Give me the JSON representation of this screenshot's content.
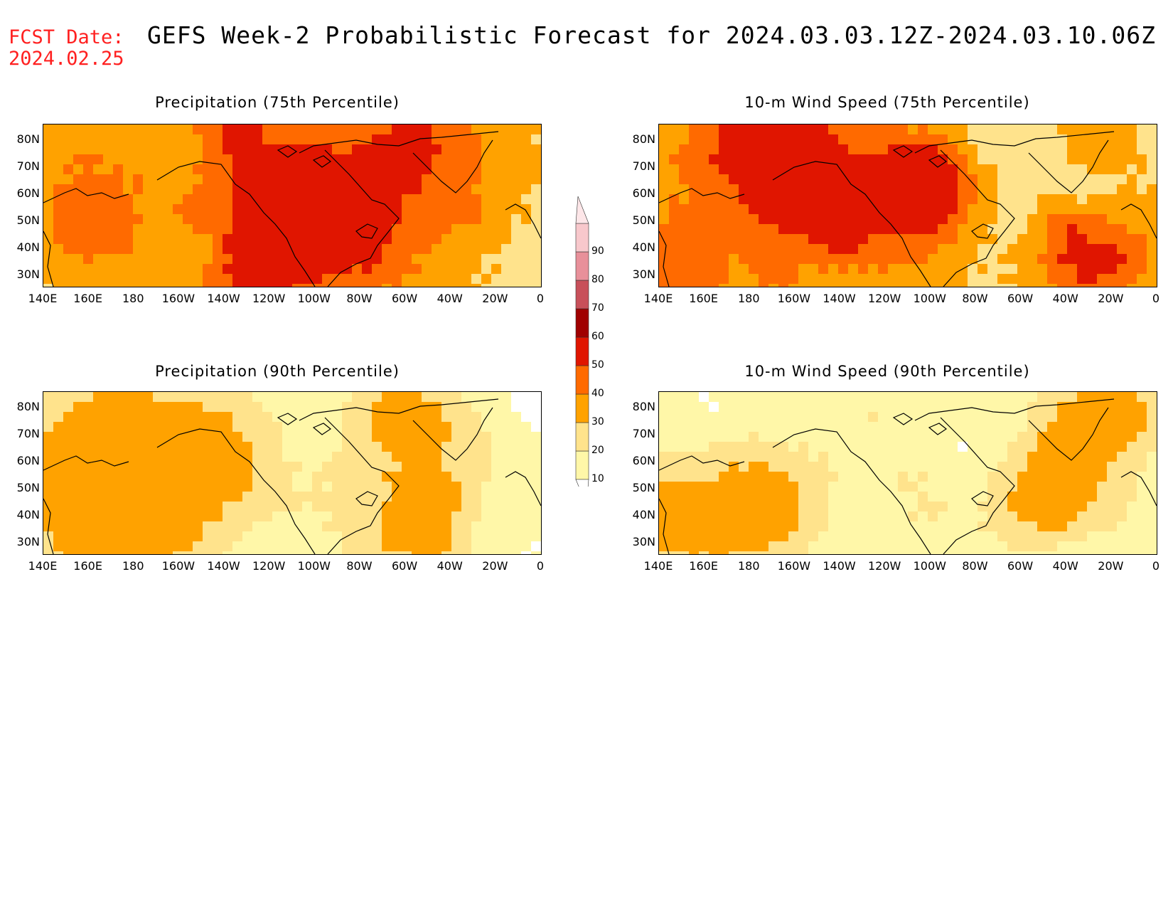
{
  "header": {
    "fcst_label": "FCST Date:",
    "fcst_date": "2024.02.25",
    "title": "GEFS Week-2 Probabilistic Forecast for 2024.03.03.12Z-2024.03.10.06Z"
  },
  "axes": {
    "lat_labels": [
      "80N",
      "70N",
      "60N",
      "50N",
      "40N",
      "30N"
    ],
    "lon_labels": [
      "140E",
      "160E",
      "180",
      "160W",
      "140W",
      "120W",
      "100W",
      "80W",
      "60W",
      "40W",
      "20W",
      "0"
    ]
  },
  "panels": [
    {
      "title": "Precipitation (75th Percentile)",
      "intensity": "high"
    },
    {
      "title": "10-m Wind Speed (75th Percentile)",
      "intensity": "high"
    },
    {
      "title": "Precipitation (90th Percentile)",
      "intensity": "low"
    },
    {
      "title": "10-m Wind Speed (90th Percentile)",
      "intensity": "low"
    }
  ],
  "colorbar": {
    "levels": [
      "10",
      "20",
      "30",
      "40",
      "50",
      "60",
      "70",
      "80",
      "90"
    ],
    "colors": [
      "#fff7a8",
      "#ffe38c",
      "#ffa200",
      "#ff6a00",
      "#e01500",
      "#a00000",
      "#c8505a",
      "#e8909a",
      "#f8c8cc"
    ]
  }
}
